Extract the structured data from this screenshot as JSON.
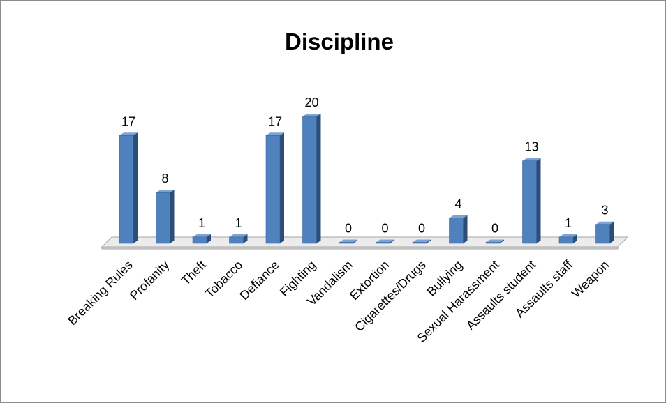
{
  "chart_data": {
    "type": "bar",
    "title": "Discipline",
    "categories": [
      "Breaking Rules",
      "Profanity",
      "Theft",
      "Tobacco",
      "Defiance",
      "Fighting",
      "Vandalism",
      "Extortion",
      "Cigarettes/Drugs",
      "Bullying",
      "Sexual Harassment",
      "Assaults student",
      "Assaults staff",
      "Weapon"
    ],
    "values": [
      17,
      8,
      1,
      1,
      17,
      20,
      0,
      0,
      0,
      4,
      0,
      13,
      1,
      3
    ],
    "xlabel": "",
    "ylabel": "",
    "ylim": [
      0,
      20
    ],
    "grid": false,
    "legend": "none",
    "colors": {
      "bar_front": "#4f81bd",
      "bar_side": "#2c4d75",
      "bar_top": "#7da3d6",
      "floor": "#ececec",
      "floor_edge": "#a6a6a6"
    }
  }
}
